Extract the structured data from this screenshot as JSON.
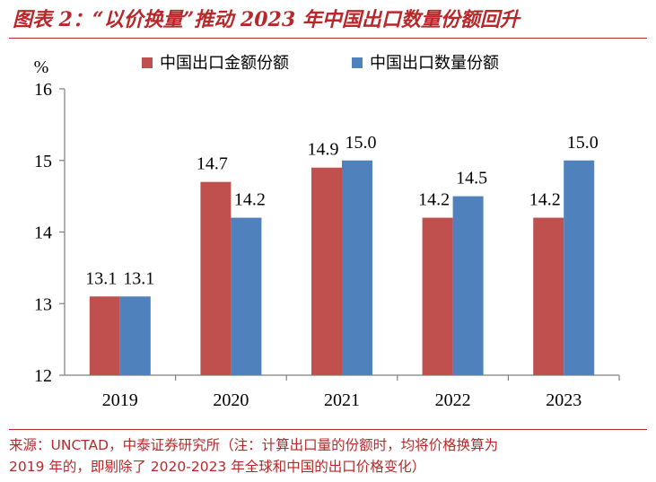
{
  "header": {
    "title": "图表 2：“以价换量”推动 2023 年中国出口数量份额回升"
  },
  "footer": {
    "source_line1": "来源：UNCTAD，中泰证券研究所（注：计算出口量的份额时，均将价格换算为",
    "source_line2": "2019 年的，即剔除了 2020-2023 年全球和中国的出口价格变化）"
  },
  "chart_data": {
    "type": "bar",
    "categories": [
      "2019",
      "2020",
      "2021",
      "2022",
      "2023"
    ],
    "series": [
      {
        "name": "中国出口金额份额",
        "values": [
          13.1,
          14.7,
          14.9,
          14.2,
          14.2
        ],
        "labels": [
          "13.1",
          "14.7",
          "14.9",
          "14.2",
          "14.2"
        ],
        "color": "#c0504d"
      },
      {
        "name": "中国出口数量份额",
        "values": [
          13.1,
          14.2,
          15.0,
          14.5,
          15.0
        ],
        "labels": [
          "13.1",
          "14.2",
          "15.0",
          "14.5",
          "15.0"
        ],
        "color": "#4f81bd"
      }
    ],
    "ylabel": "%",
    "ylim": [
      12,
      16
    ],
    "yticks": [
      "12",
      "13",
      "14",
      "15",
      "16"
    ],
    "legend_position": "top",
    "grid": false
  }
}
